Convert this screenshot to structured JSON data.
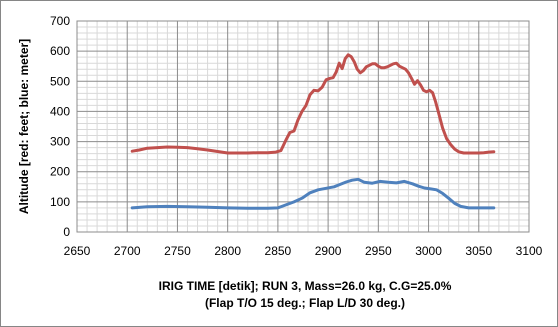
{
  "chart_data": {
    "type": "line",
    "title": "",
    "xlabel_lines": [
      "IRIG TIME [detik]; RUN 3, Mass=26.0 kg, C.G=25.0%",
      "(Flap T/O 15 deg.; Flap L/D 30 deg.)"
    ],
    "ylabel": "Altitude [red: feet; blue: meter]",
    "xlim": [
      2650,
      3100
    ],
    "ylim": [
      0,
      700
    ],
    "x_ticks": [
      2650,
      2700,
      2750,
      2800,
      2850,
      2900,
      2950,
      3000,
      3050,
      3100
    ],
    "y_ticks": [
      0,
      100,
      200,
      300,
      400,
      500,
      600,
      700
    ],
    "grid": true,
    "legend": "none",
    "series": [
      {
        "color": "#c0504d",
        "x": [
          2705,
          2712,
          2720,
          2730,
          2740,
          2750,
          2760,
          2770,
          2780,
          2790,
          2800,
          2810,
          2820,
          2830,
          2840,
          2848,
          2853,
          2858,
          2862,
          2866,
          2870,
          2874,
          2878,
          2882,
          2886,
          2890,
          2894,
          2898,
          2902,
          2905,
          2908,
          2911,
          2914,
          2917,
          2920,
          2923,
          2926,
          2929,
          2932,
          2935,
          2938,
          2941,
          2944,
          2947,
          2950,
          2953,
          2956,
          2959,
          2962,
          2965,
          2968,
          2971,
          2974,
          2977,
          2980,
          2983,
          2986,
          2989,
          2992,
          2995,
          2998,
          3001,
          3004,
          3007,
          3010,
          3014,
          3018,
          3022,
          3026,
          3030,
          3035,
          3040,
          3045,
          3050,
          3055,
          3060,
          3065
        ],
        "values": [
          268,
          272,
          278,
          280,
          282,
          281,
          280,
          276,
          272,
          267,
          262,
          262,
          262,
          263,
          263,
          265,
          270,
          305,
          330,
          335,
          372,
          400,
          420,
          455,
          470,
          468,
          480,
          505,
          510,
          512,
          530,
          560,
          542,
          575,
          588,
          582,
          565,
          540,
          528,
          535,
          548,
          553,
          558,
          558,
          550,
          545,
          545,
          548,
          553,
          558,
          560,
          550,
          545,
          540,
          528,
          510,
          490,
          502,
          488,
          470,
          465,
          470,
          462,
          432,
          395,
          345,
          310,
          290,
          275,
          266,
          262,
          262,
          262,
          262,
          263,
          265,
          266
        ]
      },
      {
        "color": "#4f81bd",
        "x": [
          2705,
          2720,
          2740,
          2760,
          2780,
          2800,
          2820,
          2840,
          2850,
          2858,
          2866,
          2874,
          2882,
          2890,
          2898,
          2906,
          2912,
          2918,
          2924,
          2930,
          2936,
          2944,
          2952,
          2960,
          2968,
          2976,
          2984,
          2990,
          2996,
          3002,
          3008,
          3014,
          3020,
          3026,
          3032,
          3040,
          3050,
          3060,
          3065
        ],
        "values": [
          80,
          84,
          85,
          84,
          82,
          80,
          79,
          79,
          80,
          90,
          100,
          112,
          130,
          140,
          145,
          150,
          158,
          166,
          172,
          175,
          165,
          162,
          168,
          165,
          163,
          168,
          160,
          152,
          146,
          143,
          140,
          128,
          112,
          95,
          85,
          80,
          80,
          80,
          80
        ]
      }
    ]
  }
}
